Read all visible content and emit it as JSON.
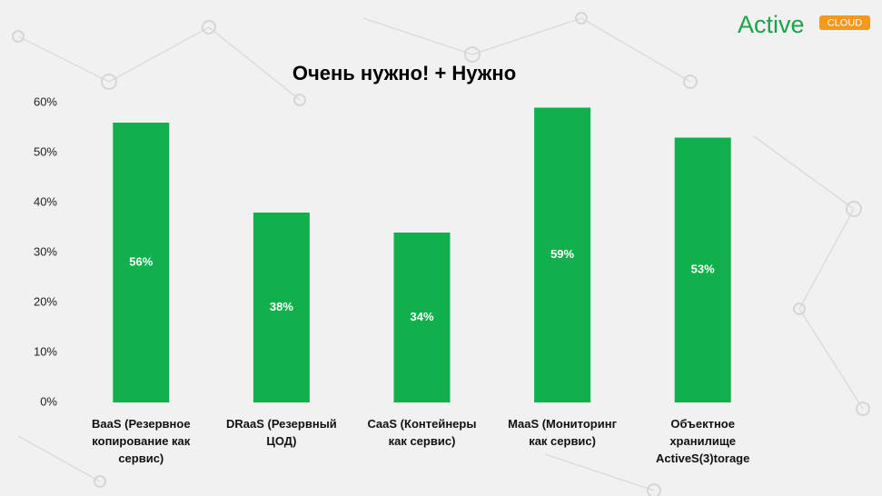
{
  "logo": {
    "text": "Active",
    "badge": "CLOUD"
  },
  "chart_data": {
    "type": "bar",
    "title": "Очень нужно! + Нужно",
    "categories": [
      "BaaS (Резервное\nкопирование как\nсервис)",
      "DRaaS (Резервный\nЦОД)",
      "CaaS (Контейнеры\nкак сервис)",
      "MaaS (Мониторинг\nкак сервис)",
      "Объектное\nхранилище\nActiveS(3)torage"
    ],
    "values": [
      56,
      38,
      34,
      59,
      53
    ],
    "value_labels": [
      "56%",
      "38%",
      "34%",
      "59%",
      "53%"
    ],
    "color": "#12b04c",
    "ylim": [
      0,
      60
    ],
    "yticks": [
      {
        "value": 0,
        "label": "0%"
      },
      {
        "value": 10,
        "label": "10%"
      },
      {
        "value": 20,
        "label": "20%"
      },
      {
        "value": 30,
        "label": "30%"
      },
      {
        "value": 40,
        "label": "40%"
      },
      {
        "value": 50,
        "label": "50%"
      },
      {
        "value": 60,
        "label": "60%"
      }
    ],
    "grid": false
  }
}
